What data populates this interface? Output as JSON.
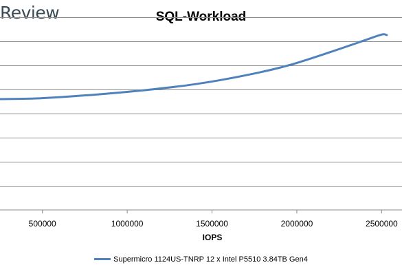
{
  "brand": {
    "name": "Review"
  },
  "chart_data": {
    "type": "line",
    "title": "SQL-Workload",
    "xlabel": "IOPS",
    "ylabel": "",
    "xlim": [
      250000,
      2620000
    ],
    "ylim": [
      0,
      8
    ],
    "x_ticks": [
      500000,
      1000000,
      1500000,
      2000000,
      2500000
    ],
    "x_tick_labels": [
      "500000",
      "1000000",
      "1500000",
      "2000000",
      "2500000"
    ],
    "y_gridlines": [
      1,
      2,
      3,
      4,
      5,
      6,
      7,
      8
    ],
    "grid": true,
    "legend_position": "bottom",
    "series": [
      {
        "name": "Supermicro 1124US-TNRP 12 x Intel P5510 3.84TB Gen4",
        "color": "#4f81bd",
        "x": [
          250000,
          500000,
          800000,
          1100000,
          1400000,
          1700000,
          1950000,
          2200000,
          2400000,
          2500000,
          2530000
        ],
        "y": [
          4.6,
          4.64,
          4.78,
          4.97,
          5.22,
          5.59,
          6.0,
          6.56,
          7.04,
          7.28,
          7.26
        ]
      }
    ]
  }
}
